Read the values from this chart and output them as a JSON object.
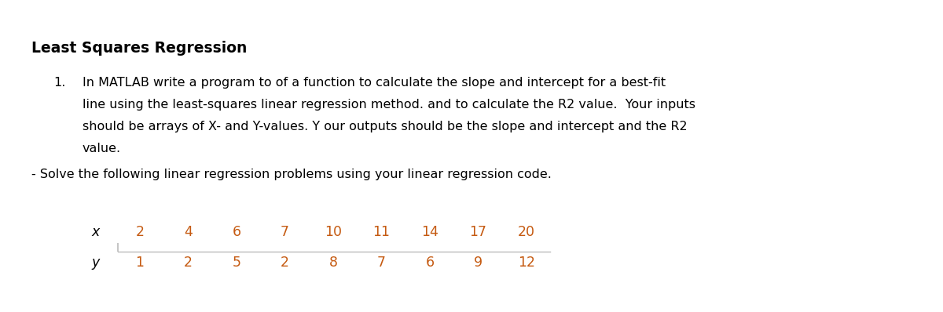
{
  "title": "Least Squares Regression",
  "item1_text_line1": "In MATLAB write a program to of a function to calculate the slope and intercept for a best-fit",
  "item1_text_line2": "line using the least-squares linear regression method. and to calculate the R2 value.  Your inputs",
  "item1_text_line3": "should be arrays of X- and Y-values. Y our outputs should be the slope and intercept and the R2",
  "item1_text_line4": "value.",
  "solve_text": "- Solve the following linear regression problems using your linear regression code.",
  "x_label": "x",
  "y_label": "y",
  "x_values": [
    "2",
    "4",
    "6",
    "7",
    "10",
    "11",
    "14",
    "17",
    "20"
  ],
  "y_values": [
    "1",
    "2",
    "5",
    "2",
    "8",
    "7",
    "6",
    "9",
    "12"
  ],
  "background_color": "#ffffff",
  "text_color": "#000000",
  "table_value_color": "#c55a11",
  "title_fontsize": 13.5,
  "body_fontsize": 11.5,
  "table_fontsize": 12.5
}
